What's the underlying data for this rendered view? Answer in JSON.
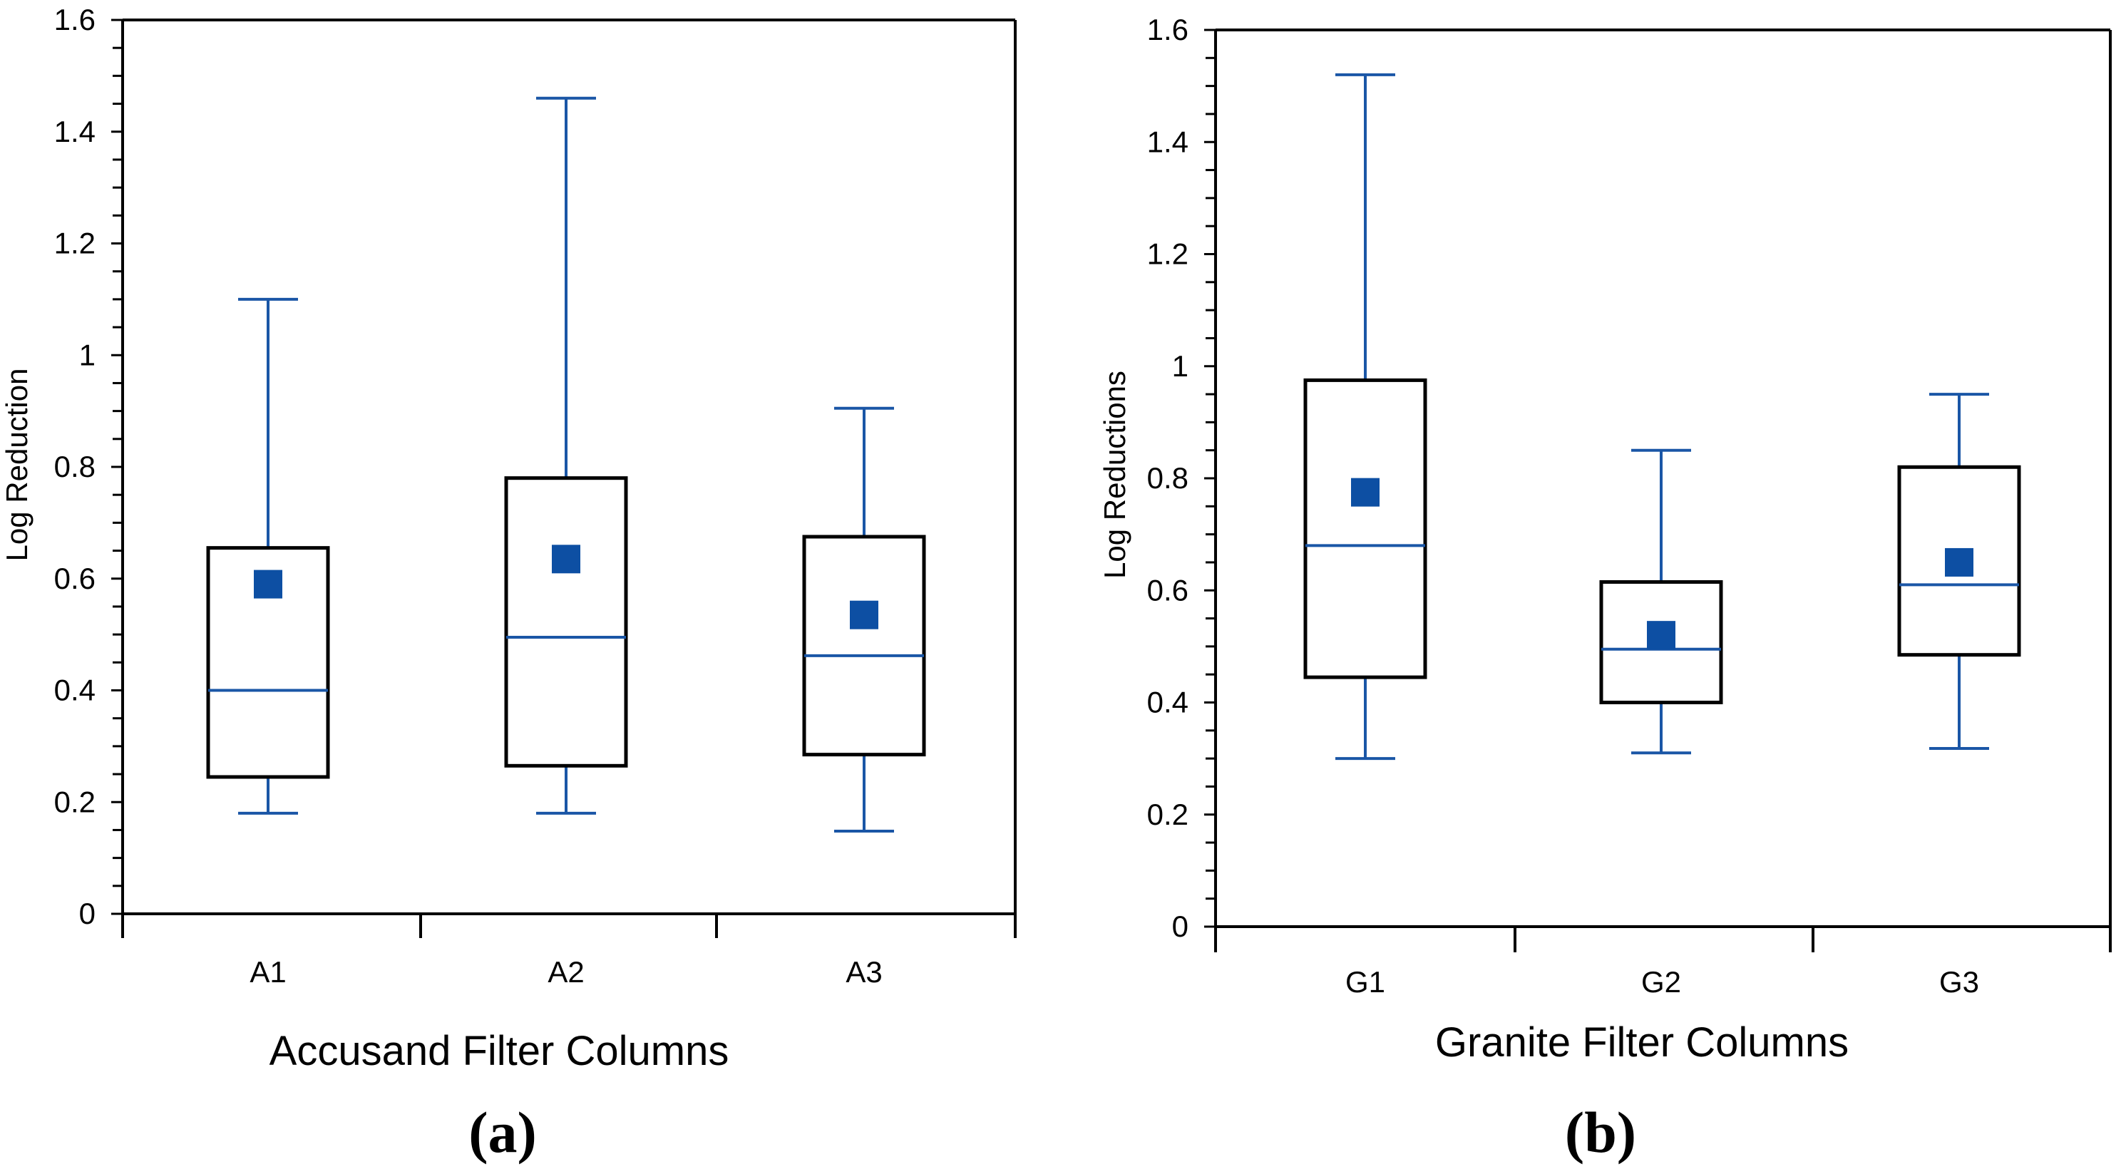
{
  "chart_data": [
    {
      "type": "box",
      "panel_label": "(a)",
      "xlabel": "Accusand Filter Columns",
      "ylabel": "Log Reduction",
      "ylim": [
        0,
        1.6
      ],
      "y_ticks": [
        "0",
        "0.2",
        "0.4",
        "0.6",
        "0.8",
        "1",
        "1.2",
        "1.4",
        "1.6"
      ],
      "categories": [
        "A1",
        "A2",
        "A3"
      ],
      "boxes": [
        {
          "category": "A1",
          "min": 0.18,
          "q1": 0.245,
          "median": 0.4,
          "q3": 0.655,
          "max": 1.1,
          "mean": 0.59
        },
        {
          "category": "A2",
          "min": 0.18,
          "q1": 0.265,
          "median": 0.495,
          "q3": 0.78,
          "max": 1.46,
          "mean": 0.635
        },
        {
          "category": "A3",
          "min": 0.148,
          "q1": 0.285,
          "median": 0.462,
          "q3": 0.675,
          "max": 0.905,
          "mean": 0.535
        }
      ]
    },
    {
      "type": "box",
      "panel_label": "(b)",
      "xlabel": "Granite Filter Columns",
      "ylabel": "Log Reductions",
      "ylim": [
        0,
        1.6
      ],
      "y_ticks": [
        "0",
        "0.2",
        "0.4",
        "0.6",
        "0.8",
        "1",
        "1.2",
        "1.4",
        "1.6"
      ],
      "categories": [
        "G1",
        "G2",
        "G3"
      ],
      "boxes": [
        {
          "category": "G1",
          "min": 0.3,
          "q1": 0.445,
          "median": 0.68,
          "q3": 0.975,
          "max": 1.52,
          "mean": 0.775
        },
        {
          "category": "G2",
          "min": 0.31,
          "q1": 0.4,
          "median": 0.495,
          "q3": 0.615,
          "max": 0.85,
          "mean": 0.52
        },
        {
          "category": "G3",
          "min": 0.318,
          "q1": 0.485,
          "median": 0.61,
          "q3": 0.82,
          "max": 0.95,
          "mean": 0.65
        }
      ]
    }
  ],
  "colors": {
    "series": "#1a56a6",
    "mean_marker": "#0d4fa3",
    "axis": "#000000"
  }
}
